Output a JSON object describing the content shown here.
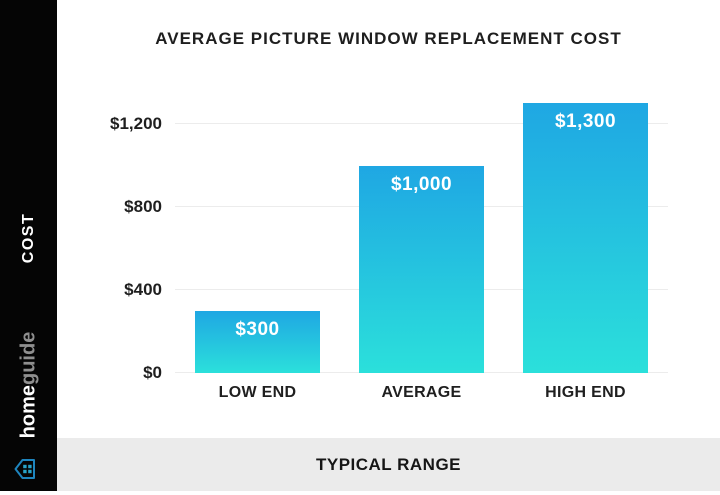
{
  "sidebar": {
    "cost_label": "COST",
    "brand": {
      "bold": "home",
      "light": "guide"
    }
  },
  "header": {
    "title": "AVERAGE PICTURE WINDOW REPLACEMENT COST"
  },
  "footer": {
    "label": "TYPICAL RANGE"
  },
  "chart_data": {
    "type": "bar",
    "title": "AVERAGE PICTURE WINDOW REPLACEMENT COST",
    "categories": [
      "LOW END",
      "AVERAGE",
      "HIGH END"
    ],
    "values": [
      300,
      1000,
      1300
    ],
    "value_labels": [
      "$300",
      "$1,000",
      "$1,300"
    ],
    "y_ticks": [
      0,
      400,
      800,
      1200
    ],
    "y_tick_labels": [
      "$0",
      "$400",
      "$800",
      "$1,200"
    ],
    "ylim": [
      0,
      1340
    ],
    "xlabel": "TYPICAL RANGE",
    "ylabel": "COST",
    "grid": true,
    "legend": "none",
    "colors": {
      "bar_gradient_top": "#1fa7e3",
      "bar_gradient_bottom": "#2be0db",
      "gridline": "#ececec",
      "text": "#1f1f1f",
      "sidebar_bg": "#050505",
      "footer_bg": "#ebebeb",
      "brand_icon": "#1e85be"
    }
  }
}
